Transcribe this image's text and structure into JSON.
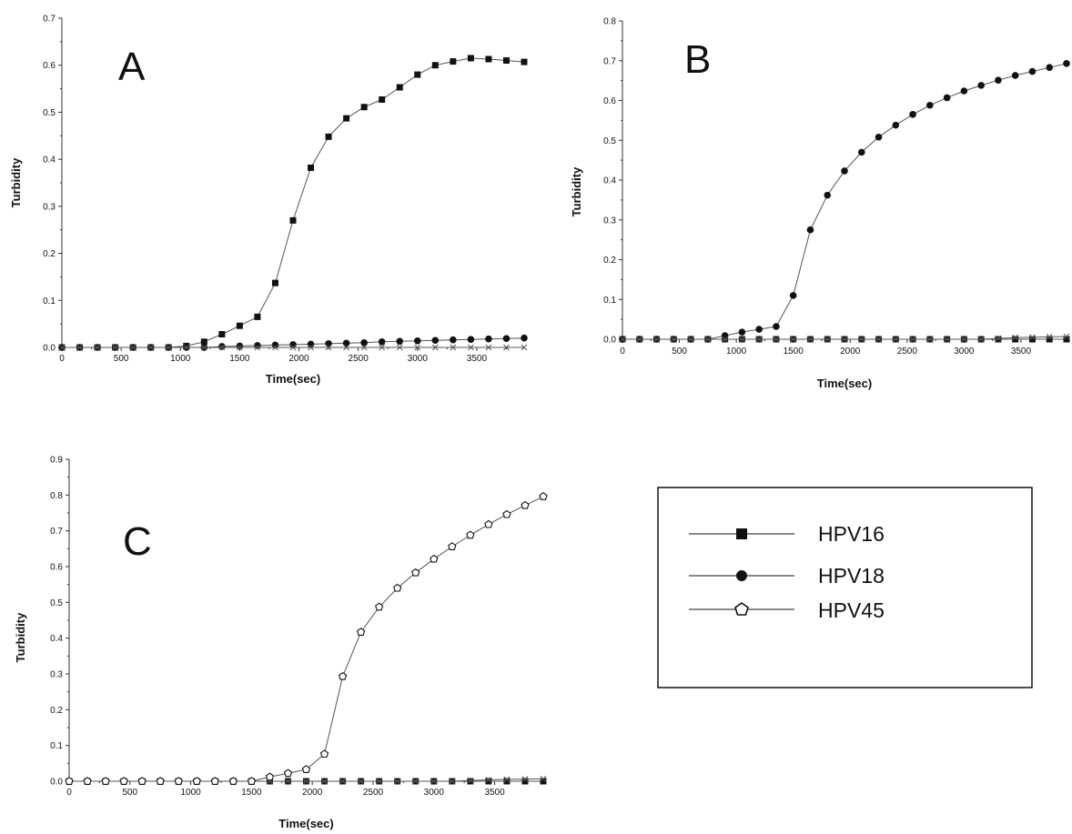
{
  "chart_data": [
    {
      "type": "line",
      "panel": "A",
      "xlabel": "Time(sec)",
      "ylabel": "Turbidity",
      "xlim": [
        0,
        3900
      ],
      "ylim": [
        0,
        0.7
      ],
      "xticks": [
        0,
        500,
        1000,
        1500,
        2000,
        2500,
        3000,
        3500
      ],
      "yticks": [
        0.0,
        0.1,
        0.2,
        0.3,
        0.4,
        0.5,
        0.6,
        0.7
      ],
      "ytick_labels": [
        "0.0",
        "0.1",
        "0.2",
        "0.3",
        "0.4",
        "0.5",
        "0.6",
        "0.7"
      ],
      "x": [
        0,
        150,
        300,
        450,
        600,
        750,
        900,
        1050,
        1200,
        1350,
        1500,
        1650,
        1800,
        1950,
        2100,
        2250,
        2400,
        2550,
        2700,
        2850,
        3000,
        3150,
        3300,
        3450,
        3600,
        3750,
        3900
      ],
      "series": [
        {
          "name": "HPV16",
          "marker": "square",
          "values": [
            0,
            0,
            0,
            0,
            0,
            0,
            0,
            0.003,
            0.012,
            0.028,
            0.046,
            0.065,
            0.137,
            0.27,
            0.382,
            0.448,
            0.487,
            0.511,
            0.527,
            0.553,
            0.58,
            0.6,
            0.608,
            0.615,
            0.613,
            0.61,
            0.607
          ]
        },
        {
          "name": "HPV18",
          "marker": "circle",
          "values": [
            0,
            0,
            0,
            0,
            0,
            0,
            0,
            0,
            0,
            0.002,
            0.003,
            0.004,
            0.005,
            0.006,
            0.007,
            0.008,
            0.009,
            0.01,
            0.012,
            0.013,
            0.014,
            0.015,
            0.016,
            0.017,
            0.018,
            0.019,
            0.02
          ]
        },
        {
          "name": "HPV45",
          "marker": "x",
          "values": [
            0,
            0,
            0,
            0,
            0,
            0,
            0,
            0,
            0,
            0,
            0,
            0,
            0,
            0,
            0,
            0,
            0,
            0,
            0,
            0,
            0,
            0,
            0,
            0,
            0,
            0,
            0
          ]
        }
      ]
    },
    {
      "type": "line",
      "panel": "B",
      "xlabel": "Time(sec)",
      "ylabel": "Turbidity",
      "xlim": [
        0,
        3900
      ],
      "ylim": [
        0,
        0.8
      ],
      "xticks": [
        0,
        500,
        1000,
        1500,
        2000,
        2500,
        3000,
        3500
      ],
      "yticks": [
        0.0,
        0.1,
        0.2,
        0.3,
        0.4,
        0.5,
        0.6,
        0.7,
        0.8
      ],
      "ytick_labels": [
        "0.0",
        "0.1",
        "0.2",
        "0.3",
        "0.4",
        "0.5",
        "0.6",
        "0.7",
        "0.8"
      ],
      "x": [
        0,
        150,
        300,
        450,
        600,
        750,
        900,
        1050,
        1200,
        1350,
        1500,
        1650,
        1800,
        1950,
        2100,
        2250,
        2400,
        2550,
        2700,
        2850,
        3000,
        3150,
        3300,
        3450,
        3600,
        3750,
        3900
      ],
      "series": [
        {
          "name": "HPV16",
          "marker": "square",
          "values": [
            0,
            0,
            0,
            0,
            0,
            0,
            0,
            0,
            0,
            0,
            0,
            0,
            0,
            0,
            0,
            0,
            0,
            0,
            0,
            0,
            0,
            0,
            0,
            0,
            0,
            0,
            0
          ]
        },
        {
          "name": "HPV18",
          "marker": "circle",
          "values": [
            0,
            0,
            0,
            0,
            0,
            0,
            0.009,
            0.018,
            0.025,
            0.032,
            0.11,
            0.275,
            0.362,
            0.423,
            0.47,
            0.508,
            0.538,
            0.565,
            0.588,
            0.607,
            0.624,
            0.638,
            0.651,
            0.663,
            0.673,
            0.683,
            0.693
          ]
        },
        {
          "name": "HPV45",
          "marker": "x",
          "values": [
            0,
            0,
            0,
            0,
            0,
            0,
            0,
            0,
            0,
            0,
            0,
            0,
            0,
            0,
            0,
            0,
            0,
            0,
            0,
            0,
            0,
            0,
            0.002,
            0.004,
            0.005,
            0.006,
            0.007
          ]
        }
      ]
    },
    {
      "type": "line",
      "panel": "C",
      "xlabel": "Time(sec)",
      "ylabel": "Turbidity",
      "xlim": [
        0,
        3900
      ],
      "ylim": [
        0,
        0.9
      ],
      "xticks": [
        0,
        500,
        1000,
        1500,
        2000,
        2500,
        3000,
        3500
      ],
      "yticks": [
        0.0,
        0.1,
        0.2,
        0.3,
        0.4,
        0.5,
        0.6,
        0.7,
        0.8,
        0.9
      ],
      "ytick_labels": [
        "0.0",
        "0.1",
        "0.2",
        "0.3",
        "0.4",
        "0.5",
        "0.6",
        "0.7",
        "0.8",
        "0.9"
      ],
      "x": [
        0,
        150,
        300,
        450,
        600,
        750,
        900,
        1050,
        1200,
        1350,
        1500,
        1650,
        1800,
        1950,
        2100,
        2250,
        2400,
        2550,
        2700,
        2850,
        3000,
        3150,
        3300,
        3450,
        3600,
        3750,
        3900
      ],
      "series": [
        {
          "name": "HPV16",
          "marker": "square",
          "values": [
            0,
            0,
            0,
            0,
            0,
            0,
            0,
            0,
            0,
            0,
            0,
            0,
            0,
            0,
            0,
            0,
            0,
            0,
            0,
            0,
            0,
            0,
            0,
            0,
            0,
            0,
            0
          ]
        },
        {
          "name": "HPV18",
          "marker": "x",
          "values": [
            0,
            0,
            0,
            0,
            0,
            0,
            0,
            0,
            0,
            0,
            0,
            0,
            0,
            0,
            0,
            0,
            0,
            0,
            0,
            0,
            0,
            0,
            0.002,
            0.004,
            0.005,
            0.006,
            0.007
          ]
        },
        {
          "name": "HPV45",
          "marker": "pentagon",
          "values": [
            0,
            0,
            0,
            0,
            0,
            0,
            0,
            0,
            0,
            0,
            0,
            0.012,
            0.022,
            0.033,
            0.076,
            0.293,
            0.417,
            0.487,
            0.54,
            0.583,
            0.621,
            0.656,
            0.688,
            0.718,
            0.746,
            0.771,
            0.796
          ]
        }
      ]
    }
  ],
  "legend": {
    "items": [
      {
        "label": "HPV16",
        "marker": "square"
      },
      {
        "label": "HPV18",
        "marker": "circle"
      },
      {
        "label": "HPV45",
        "marker": "pentagon"
      }
    ]
  },
  "colors": {
    "line": "#555555",
    "marker": "#111111",
    "text": "#111111",
    "axis": "#333333"
  }
}
